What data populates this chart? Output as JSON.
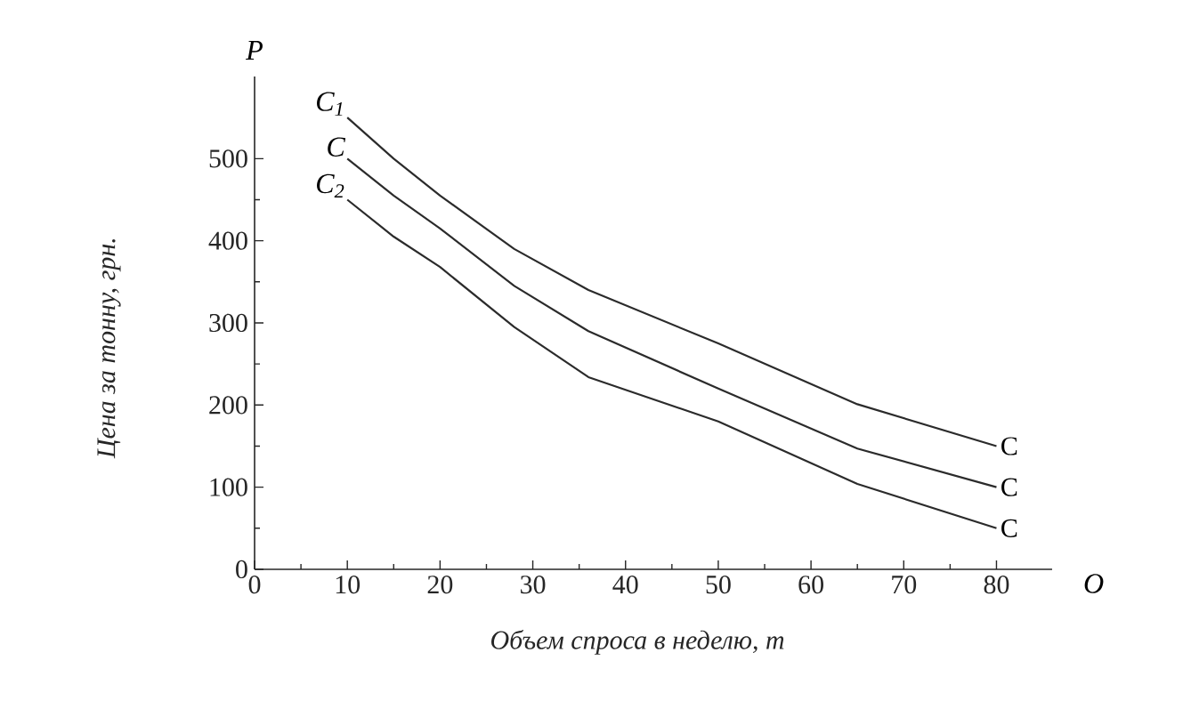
{
  "chart_data": {
    "type": "line",
    "xlabel": "Объем спроса в неделю, т",
    "ylabel": "Цена за тонну, грн.",
    "x": [
      10,
      15,
      20,
      28,
      36,
      50,
      65,
      80
    ],
    "series": [
      {
        "name": "C$_{1}$",
        "color": "#2b2b2b",
        "values": [
          550,
          500,
          455,
          390,
          340,
          275,
          201,
          150
        ]
      },
      {
        "name": "C",
        "color": "#2b2b2b",
        "values": [
          500,
          455,
          415,
          345,
          290,
          220,
          147,
          100
        ]
      },
      {
        "name": "C$_{2}$",
        "color": "#2b2b2b",
        "values": [
          450,
          405,
          368,
          295,
          234,
          180,
          104,
          50
        ]
      }
    ],
    "xlim": [
      0,
      86
    ],
    "ylim": [
      0,
      600
    ],
    "xticks": [
      0,
      10,
      20,
      30,
      40,
      50,
      60,
      70,
      80
    ],
    "yticks": [
      0,
      100,
      200,
      300,
      400,
      500
    ],
    "annotations": [
      "P",
      "O",
      "C",
      "C",
      "C"
    ],
    "grid": false,
    "marker": "none",
    "line_style": "solid"
  }
}
